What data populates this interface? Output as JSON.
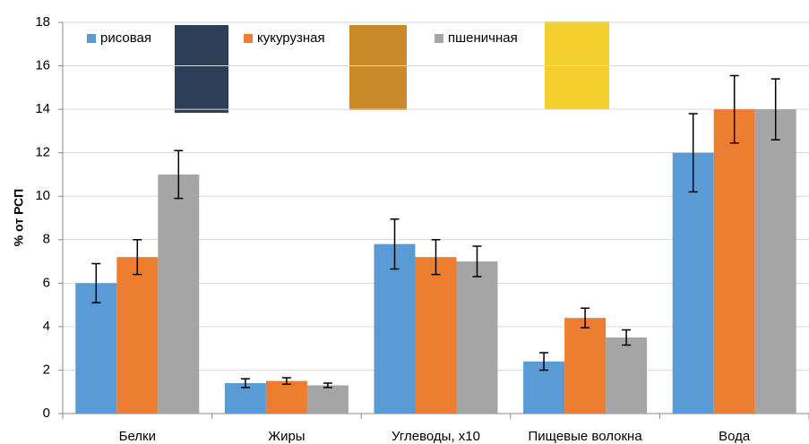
{
  "chart_data": {
    "type": "bar",
    "y_label": "% от РСП",
    "categories": [
      "Белки",
      "Жиры",
      "Углеводы, x10",
      "Пищевые волокна",
      "Вода"
    ],
    "series": [
      {
        "name": "рисовая",
        "color": "#5b9bd5",
        "values": [
          6.0,
          1.4,
          7.8,
          2.4,
          12.0
        ],
        "errors": [
          0.9,
          0.2,
          1.15,
          0.4,
          1.8
        ]
      },
      {
        "name": "кукурузная",
        "color": "#ed7d31",
        "values": [
          7.2,
          1.5,
          7.2,
          4.4,
          14.0
        ],
        "errors": [
          0.8,
          0.15,
          0.8,
          0.45,
          1.55
        ]
      },
      {
        "name": "пшеничная",
        "color": "#a5a5a5",
        "values": [
          11.0,
          1.3,
          7.0,
          3.5,
          14.0
        ],
        "errors": [
          1.1,
          0.1,
          0.7,
          0.35,
          1.4
        ]
      }
    ],
    "ylim": [
      0,
      18
    ],
    "yticks": [
      0,
      2,
      4,
      6,
      8,
      10,
      12,
      14,
      16,
      18
    ],
    "grid": true
  }
}
